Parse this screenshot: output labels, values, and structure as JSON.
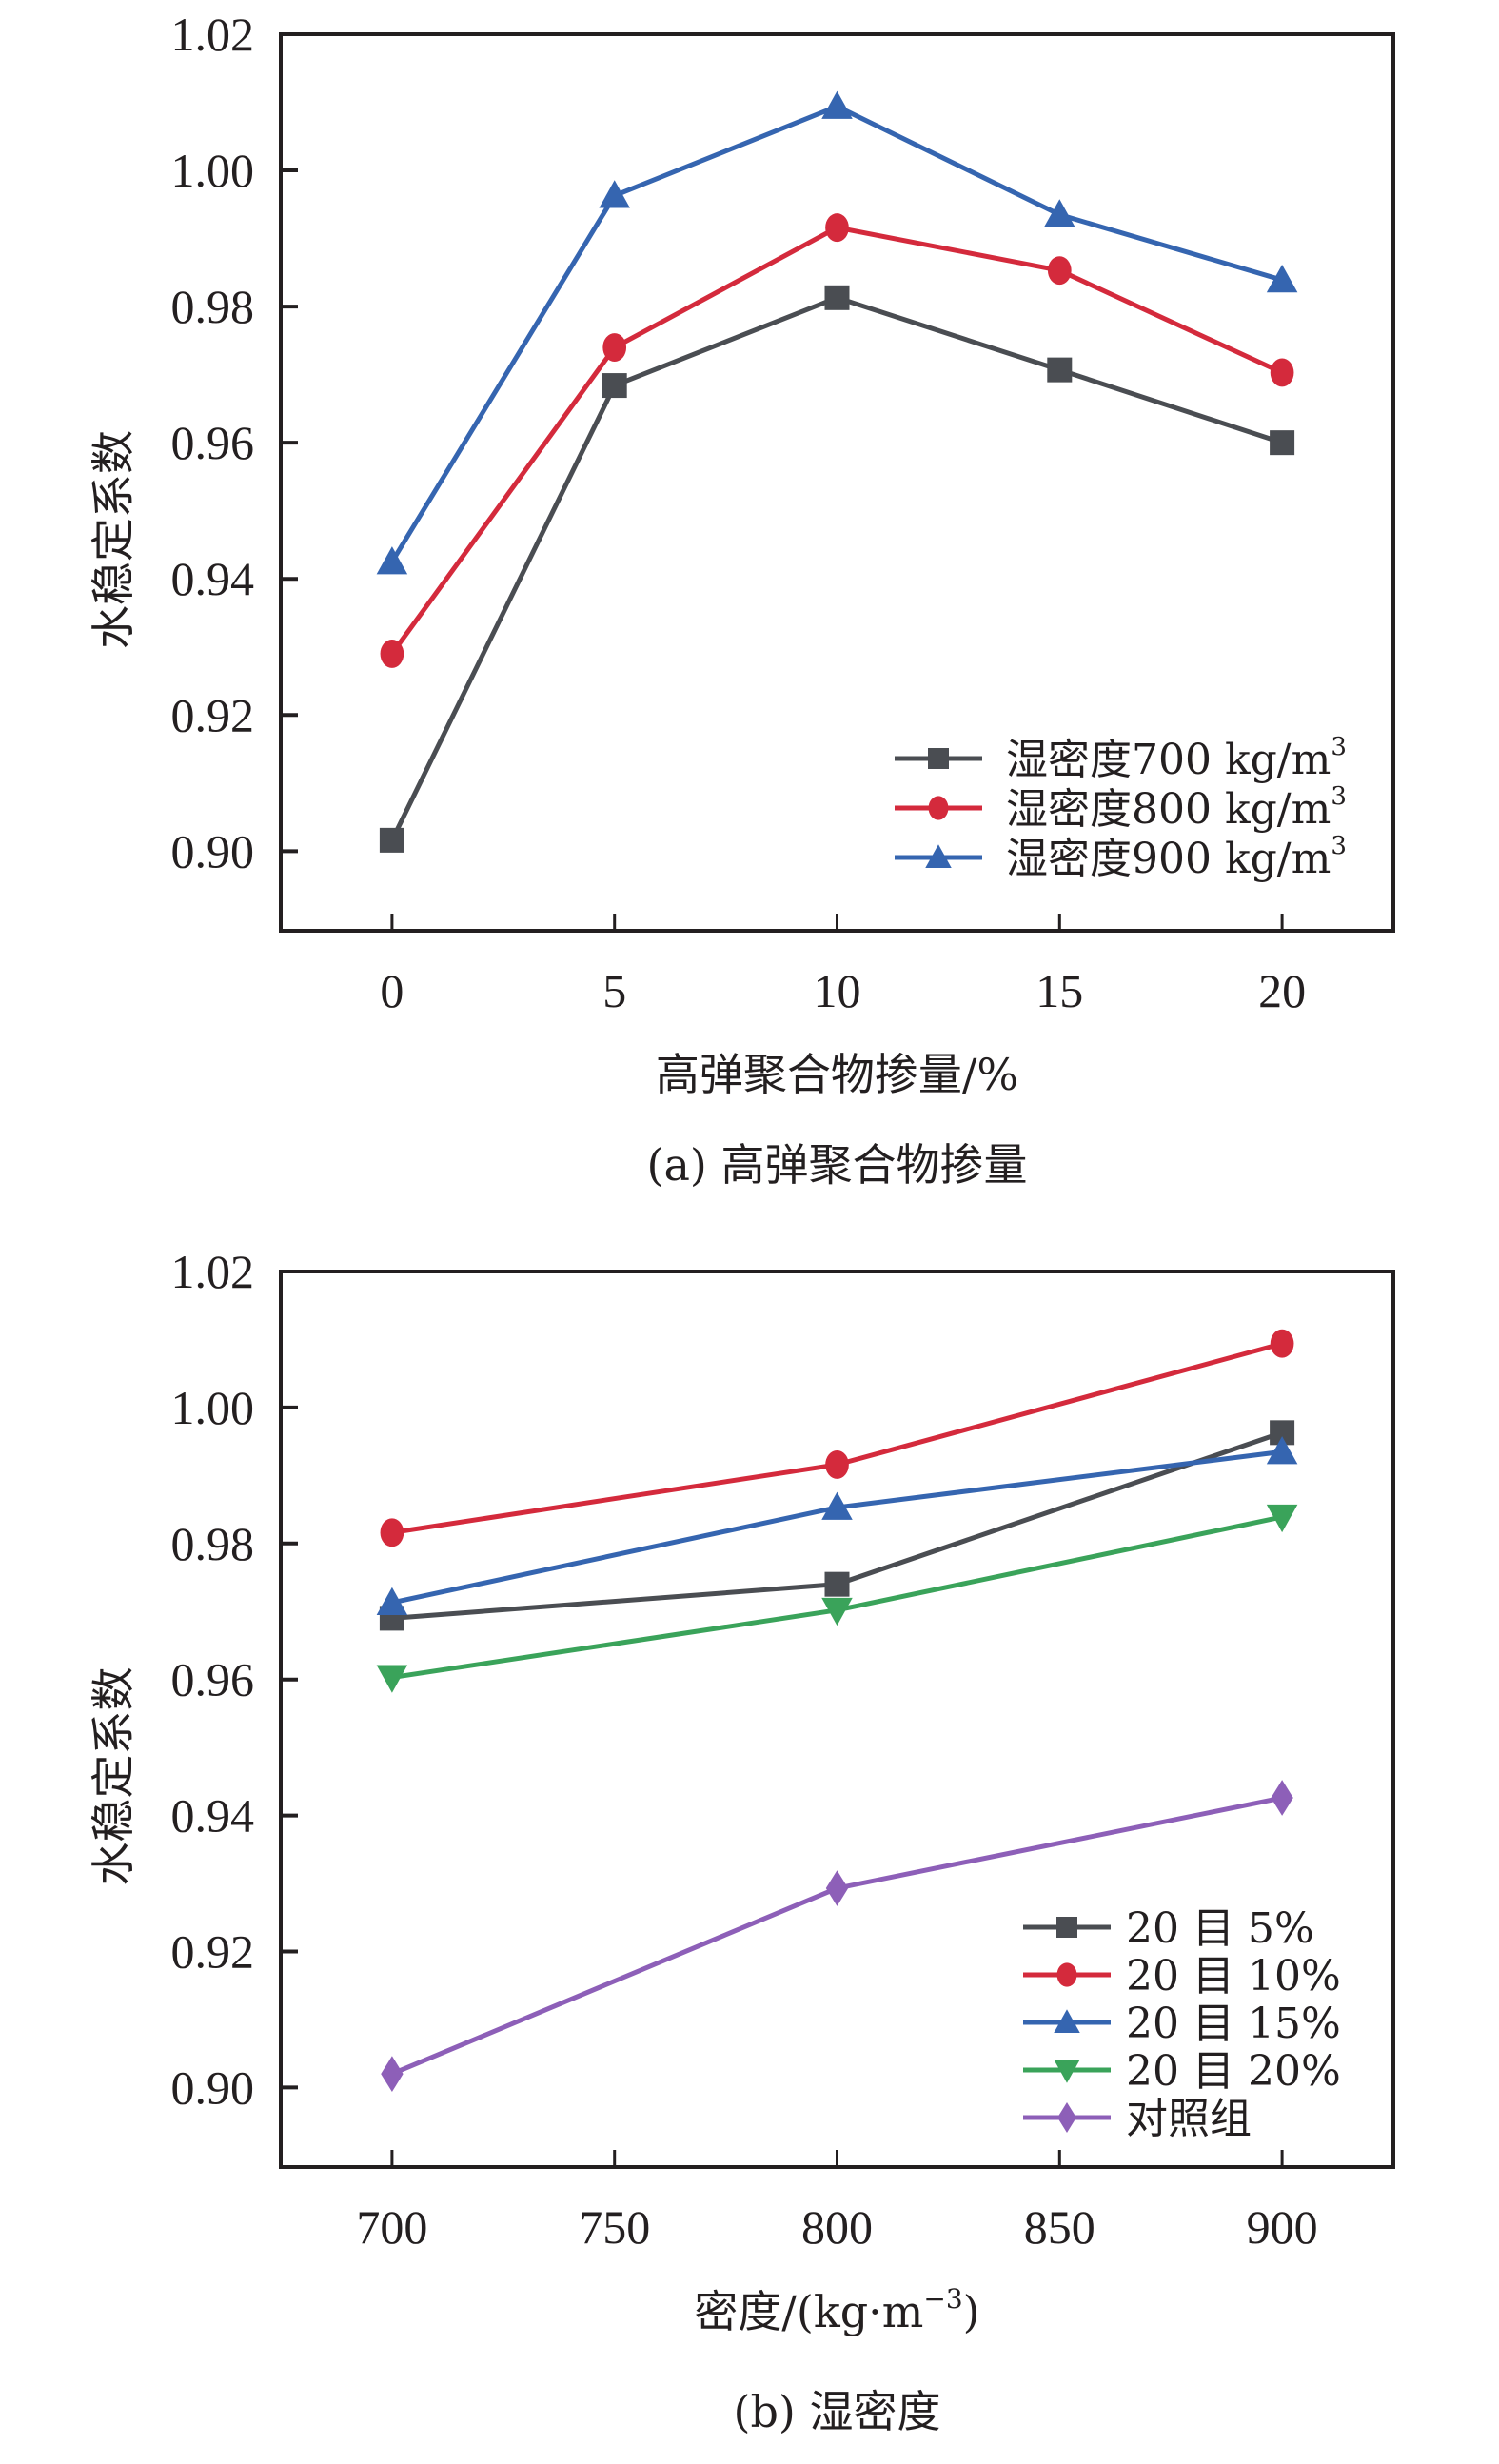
{
  "chart_data": [
    {
      "type": "line",
      "panel": "a",
      "caption": "(a) 高弹聚合物掺量",
      "xlabel": "高弹聚合物掺量/%",
      "ylabel": "水稳定系数",
      "x": [
        0,
        5,
        10,
        15,
        20
      ],
      "xticks": [
        "0",
        "5",
        "10",
        "15",
        "20"
      ],
      "xlim": [
        -2.5,
        22.5
      ],
      "yticks": [
        "0.90",
        "0.92",
        "0.94",
        "0.96",
        "0.98",
        "1.00",
        "1.02"
      ],
      "ylim": [
        0.8883,
        1.02
      ],
      "grid": false,
      "legend_position": "bottom-right",
      "series": [
        {
          "name": "湿密度700 kg/m³",
          "label_main": "湿密度700 kg/m",
          "label_sup": "3",
          "marker": "square",
          "color": "#4a4d52",
          "values": [
            0.9016,
            0.9684,
            0.9813,
            0.9707,
            0.96
          ]
        },
        {
          "name": "湿密度800 kg/m³",
          "label_main": "湿密度800 kg/m",
          "label_sup": "3",
          "marker": "circle",
          "color": "#d42a3c",
          "values": [
            0.929,
            0.974,
            0.9916,
            0.9853,
            0.9703
          ]
        },
        {
          "name": "湿密度900 kg/m³",
          "label_main": "湿密度900 kg/m",
          "label_sup": "3",
          "marker": "triangle-up",
          "color": "#3565b0",
          "values": [
            0.9425,
            0.9963,
            1.0094,
            0.9935,
            0.9839
          ]
        }
      ]
    },
    {
      "type": "line",
      "panel": "b",
      "caption": "(b) 湿密度",
      "xlabel_main": "密度/(kg·m",
      "xlabel_sup": "−3",
      "xlabel_end": ")",
      "ylabel": "水稳定系数",
      "x": [
        700,
        800,
        900
      ],
      "xtick_values": [
        700,
        750,
        800,
        850,
        900
      ],
      "xticks": [
        "700",
        "750",
        "800",
        "850",
        "900"
      ],
      "xlim": [
        675,
        925
      ],
      "yticks": [
        "0.90",
        "0.92",
        "0.94",
        "0.96",
        "0.98",
        "1.00",
        "1.02"
      ],
      "ylim": [
        0.8883,
        1.02
      ],
      "grid": false,
      "legend_position": "bottom-right",
      "series": [
        {
          "name": "20 目 5%",
          "marker": "square",
          "color": "#4a4d52",
          "values": [
            0.969,
            0.974,
            0.9963
          ]
        },
        {
          "name": "20 目 10%",
          "marker": "circle",
          "color": "#d42a3c",
          "values": [
            0.9816,
            0.9916,
            1.0094
          ]
        },
        {
          "name": "20 目 15%",
          "marker": "triangle-up",
          "color": "#3565b0",
          "values": [
            0.9713,
            0.9853,
            0.9935
          ]
        },
        {
          "name": "20 目 20%",
          "marker": "triangle-down",
          "color": "#3aa35a",
          "values": [
            0.9603,
            0.9702,
            0.9839
          ]
        },
        {
          "name": "对照组",
          "marker": "diamond",
          "color": "#8d5fb8",
          "values": [
            0.902,
            0.9293,
            0.9426
          ]
        }
      ]
    }
  ]
}
